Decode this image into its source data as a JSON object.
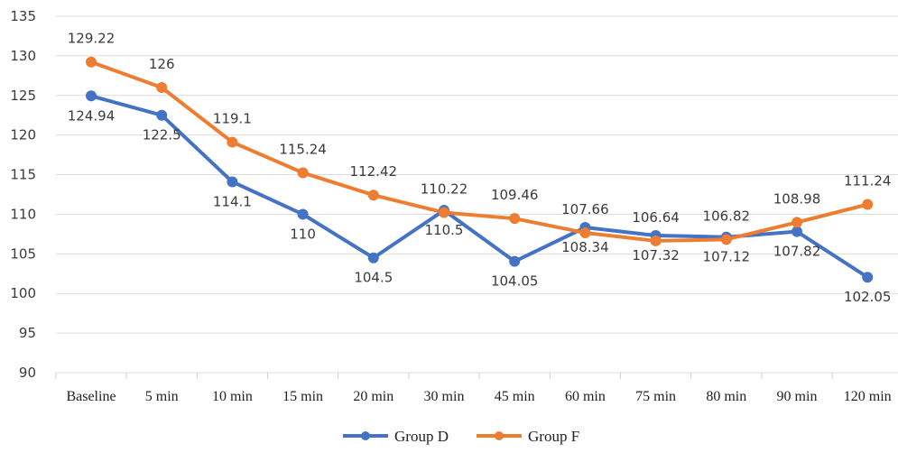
{
  "chart_data": {
    "type": "line",
    "categories": [
      "Baseline",
      "5 min",
      "10 min",
      "15 min",
      "20 min",
      "30 min",
      "45 min",
      "60 min",
      "75 min",
      "80 min",
      "90 min",
      "120 min"
    ],
    "series": [
      {
        "name": "Group D",
        "color": "#4472c4",
        "values": [
          124.94,
          122.5,
          114.1,
          110,
          104.5,
          110.5,
          104.05,
          108.34,
          107.32,
          107.12,
          107.82,
          102.05
        ],
        "labels": [
          "124.94",
          "122.5",
          "114.1",
          "110",
          "104.5",
          "110.5",
          "104.05",
          "108.34",
          "107.32",
          "107.12",
          "107.82",
          "102.05"
        ]
      },
      {
        "name": "Group F",
        "color": "#ed7d31",
        "values": [
          129.22,
          126,
          119.1,
          115.24,
          112.42,
          110.22,
          109.46,
          107.66,
          106.64,
          106.82,
          108.98,
          111.24
        ],
        "labels": [
          "129.22",
          "126",
          "119.1",
          "115.24",
          "112.42",
          "110.22",
          "109.46",
          "107.66",
          "106.64",
          "106.82",
          "108.98",
          "111.24"
        ]
      }
    ],
    "ylim": [
      90,
      135
    ],
    "yticks": [
      "90",
      "95",
      "100",
      "105",
      "110",
      "115",
      "120",
      "125",
      "130",
      "135"
    ],
    "grid": "horizontal",
    "legend": "bottom-center",
    "title": "",
    "xlabel": "",
    "ylabel": ""
  }
}
